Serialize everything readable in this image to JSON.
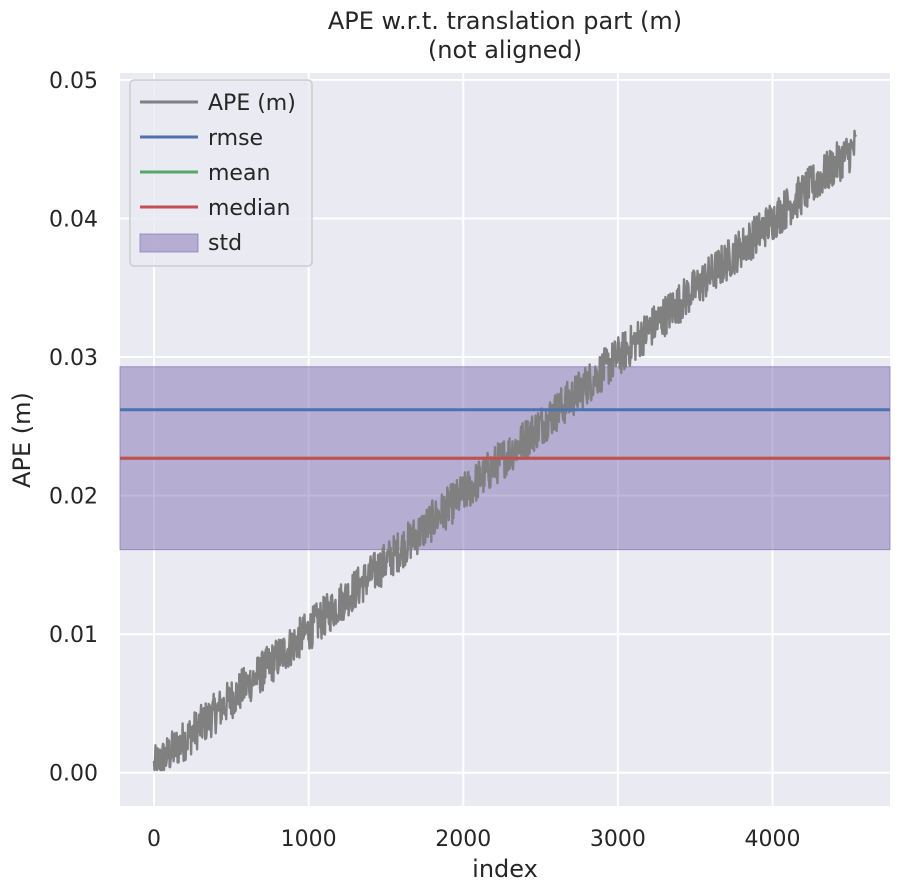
{
  "chart_data": {
    "type": "line",
    "title": [
      "APE w.r.t. translation part (m)",
      "(not aligned)"
    ],
    "xlabel": "index",
    "ylabel": "APE (m)",
    "xlim": [
      -220,
      4760
    ],
    "ylim": [
      -0.0024,
      0.0505
    ],
    "x_ticks": [
      0,
      1000,
      2000,
      3000,
      4000
    ],
    "y_ticks": [
      0.0,
      0.01,
      0.02,
      0.03,
      0.04,
      0.05
    ],
    "x_tick_labels": [
      "0",
      "1000",
      "2000",
      "3000",
      "4000"
    ],
    "y_tick_labels": [
      "0.00",
      "0.01",
      "0.02",
      "0.03",
      "0.04",
      "0.05"
    ],
    "grid": true,
    "legend_position": "top-left",
    "background": "#eaeaf2",
    "series": [
      {
        "name": "APE (m)",
        "kind": "noisy-line",
        "color": "#808080",
        "x_range": [
          0,
          4540
        ],
        "trend_start": 0.0004,
        "trend_end": 0.0452,
        "noise_amplitude": 0.0015,
        "points": [
          [
            0,
            0.001
          ],
          [
            250,
            0.002
          ],
          [
            500,
            0.005
          ],
          [
            750,
            0.008
          ],
          [
            1000,
            0.01
          ],
          [
            1250,
            0.012
          ],
          [
            1500,
            0.015
          ],
          [
            1750,
            0.017
          ],
          [
            2000,
            0.02
          ],
          [
            2250,
            0.022
          ],
          [
            2500,
            0.025
          ],
          [
            2750,
            0.028
          ],
          [
            3000,
            0.03
          ],
          [
            3250,
            0.032
          ],
          [
            3500,
            0.034
          ],
          [
            3750,
            0.037
          ],
          [
            4000,
            0.04
          ],
          [
            4250,
            0.042
          ],
          [
            4540,
            0.045
          ]
        ]
      },
      {
        "name": "rmse",
        "kind": "hline",
        "value": 0.0262,
        "color": "#4c72b0"
      },
      {
        "name": "mean",
        "kind": "hline",
        "value": 0.0227,
        "color": "#55a868"
      },
      {
        "name": "median",
        "kind": "hline",
        "value": 0.0227,
        "color": "#c44e52"
      },
      {
        "name": "std",
        "kind": "band",
        "lower": 0.0161,
        "upper": 0.0293,
        "color": "#8172b2"
      }
    ]
  }
}
